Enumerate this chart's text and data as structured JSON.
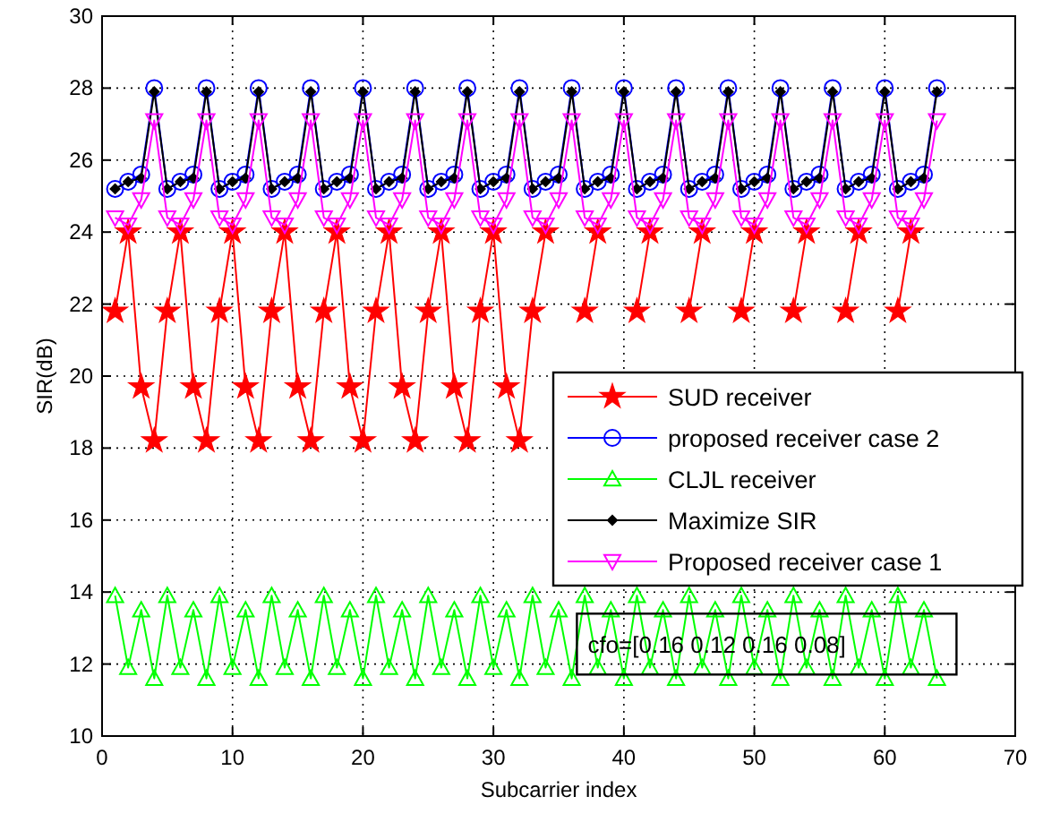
{
  "chart_data": {
    "type": "line",
    "xlabel": "Subcarrier index",
    "ylabel": "SIR(dB)",
    "x": [
      1,
      2,
      3,
      4,
      5,
      6,
      7,
      8,
      9,
      10,
      11,
      12,
      13,
      14,
      15,
      16,
      17,
      18,
      19,
      20,
      21,
      22,
      23,
      24,
      25,
      26,
      27,
      28,
      29,
      30,
      31,
      32,
      33,
      34,
      35,
      36,
      37,
      38,
      39,
      40,
      41,
      42,
      43,
      44,
      45,
      46,
      47,
      48,
      49,
      50,
      51,
      52,
      53,
      54,
      55,
      56,
      57,
      58,
      59,
      60,
      61,
      62,
      63,
      64
    ],
    "xlim": [
      0,
      70
    ],
    "xticks": [
      0,
      10,
      20,
      30,
      40,
      50,
      60,
      70
    ],
    "ylim": [
      10,
      30
    ],
    "yticks": [
      10,
      12,
      14,
      16,
      18,
      20,
      22,
      24,
      26,
      28,
      30
    ],
    "grid": true,
    "legend": "right",
    "line_style": "solid",
    "annotations": [
      "cfo=[0.16 0.12 0.16 0.08]"
    ],
    "series": [
      {
        "name": "SUD receiver",
        "color": "#ff0000",
        "marker": "star",
        "values": [
          21.8,
          24.0,
          19.7,
          18.2,
          21.8,
          24.0,
          19.7,
          18.2,
          21.8,
          24.0,
          19.7,
          18.2,
          21.8,
          24.0,
          19.7,
          18.2,
          21.8,
          24.0,
          19.7,
          18.2,
          21.8,
          24.0,
          19.7,
          18.2,
          21.8,
          24.0,
          19.7,
          18.2,
          21.8,
          24.0,
          19.7,
          18.2,
          21.8,
          24.0,
          null,
          null,
          21.8,
          24.0,
          null,
          null,
          21.8,
          24.0,
          null,
          null,
          21.8,
          24.0,
          null,
          null,
          21.8,
          24.0,
          null,
          null,
          21.8,
          24.0,
          null,
          null,
          21.8,
          24.0,
          null,
          null,
          21.8,
          24.0,
          null,
          null
        ]
      },
      {
        "name": "proposed receiver case 2",
        "color": "#0000ff",
        "marker": "circle",
        "values": [
          25.2,
          25.4,
          25.6,
          28.0,
          25.2,
          25.4,
          25.6,
          28.0,
          25.2,
          25.4,
          25.6,
          28.0,
          25.2,
          25.4,
          25.6,
          28.0,
          25.2,
          25.4,
          25.6,
          28.0,
          25.2,
          25.4,
          25.6,
          28.0,
          25.2,
          25.4,
          25.6,
          28.0,
          25.2,
          25.4,
          25.6,
          28.0,
          25.2,
          25.4,
          25.6,
          28.0,
          25.2,
          25.4,
          25.6,
          28.0,
          25.2,
          25.4,
          25.6,
          28.0,
          25.2,
          25.4,
          25.6,
          28.0,
          25.2,
          25.4,
          25.6,
          28.0,
          25.2,
          25.4,
          25.6,
          28.0,
          25.2,
          25.4,
          25.6,
          28.0,
          25.2,
          25.4,
          25.6,
          28.0
        ]
      },
      {
        "name": "CLJL receiver",
        "color": "#00ff00",
        "marker": "triangle",
        "values": [
          13.9,
          11.9,
          13.5,
          11.6,
          13.9,
          11.9,
          13.5,
          11.6,
          13.9,
          11.9,
          13.5,
          11.6,
          13.9,
          11.9,
          13.5,
          11.6,
          13.9,
          11.9,
          13.5,
          11.6,
          13.9,
          11.9,
          13.5,
          11.6,
          13.9,
          11.9,
          13.5,
          11.6,
          13.9,
          11.9,
          13.5,
          11.6,
          13.9,
          11.9,
          13.5,
          11.6,
          13.9,
          11.9,
          13.5,
          11.6,
          13.9,
          11.9,
          13.5,
          11.6,
          13.9,
          11.9,
          13.5,
          11.6,
          13.9,
          11.9,
          13.5,
          11.6,
          13.9,
          11.9,
          13.5,
          11.6,
          13.9,
          11.9,
          13.5,
          11.6,
          13.9,
          11.9,
          13.5,
          11.6
        ]
      },
      {
        "name": "Maximize SIR",
        "color": "#000000",
        "marker": "diamond",
        "values": [
          25.2,
          25.4,
          25.5,
          27.9,
          25.2,
          25.4,
          25.5,
          27.9,
          25.2,
          25.4,
          25.5,
          27.9,
          25.2,
          25.4,
          25.5,
          27.9,
          25.2,
          25.4,
          25.5,
          27.9,
          25.2,
          25.4,
          25.5,
          27.9,
          25.2,
          25.4,
          25.5,
          27.9,
          25.2,
          25.4,
          25.5,
          27.9,
          25.2,
          25.4,
          25.5,
          27.9,
          25.2,
          25.4,
          25.5,
          27.9,
          25.2,
          25.4,
          25.5,
          27.9,
          25.2,
          25.4,
          25.5,
          27.9,
          25.2,
          25.4,
          25.5,
          27.9,
          25.2,
          25.4,
          25.5,
          27.9,
          25.2,
          25.4,
          25.5,
          27.9,
          25.2,
          25.4,
          25.5,
          27.9
        ]
      },
      {
        "name": "Proposed receiver case 1",
        "color": "#ff00ff",
        "marker": "triangle-down",
        "values": [
          24.4,
          24.2,
          24.9,
          27.1,
          24.4,
          24.2,
          24.9,
          27.1,
          24.4,
          24.2,
          24.9,
          27.1,
          24.4,
          24.2,
          24.9,
          27.1,
          24.4,
          24.2,
          24.9,
          27.1,
          24.4,
          24.2,
          24.9,
          27.1,
          24.4,
          24.2,
          24.9,
          27.1,
          24.4,
          24.2,
          24.9,
          27.1,
          24.4,
          24.2,
          24.9,
          27.1,
          24.4,
          24.2,
          24.9,
          27.1,
          24.4,
          24.2,
          24.9,
          27.1,
          24.4,
          24.2,
          24.9,
          27.1,
          24.4,
          24.2,
          24.9,
          27.1,
          24.4,
          24.2,
          24.9,
          27.1,
          24.4,
          24.2,
          24.9,
          27.1,
          24.4,
          24.2,
          24.9,
          27.1
        ]
      }
    ]
  }
}
